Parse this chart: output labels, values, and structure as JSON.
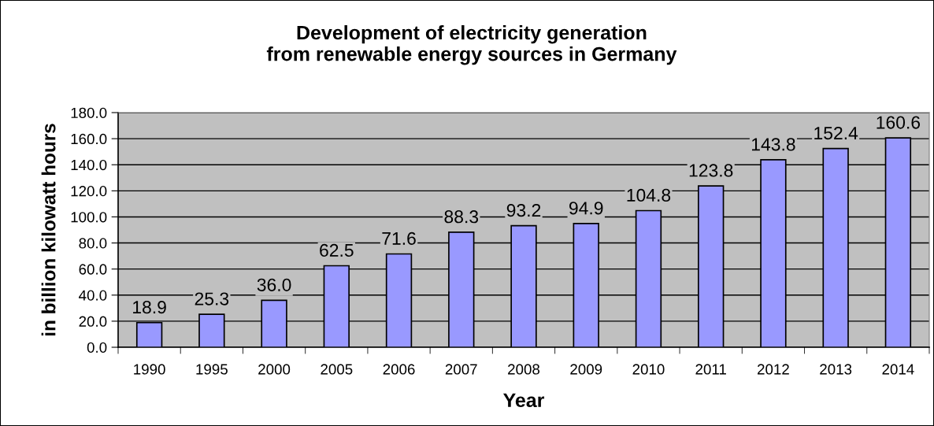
{
  "chart_data": {
    "type": "bar",
    "title": "Development of electricity generation\nfrom renewable energy sources in Germany",
    "xlabel": "Year",
    "ylabel": "in billion kilowatt hours",
    "categories": [
      "1990",
      "1995",
      "2000",
      "2005",
      "2006",
      "2007",
      "2008",
      "2009",
      "2010",
      "2011",
      "2012",
      "2013",
      "2014"
    ],
    "values": [
      18.9,
      25.3,
      36.0,
      62.5,
      71.6,
      88.3,
      93.2,
      94.9,
      104.8,
      123.8,
      143.8,
      152.4,
      160.6
    ],
    "value_labels": [
      "18.9",
      "25.3",
      "36.0",
      "62.5",
      "71.6",
      "88.3",
      "93.2",
      "94.9",
      "104.8",
      "123.8",
      "143.8",
      "152.4",
      "160.6"
    ],
    "color": "#9999ff",
    "ylim": [
      0,
      180
    ],
    "yticks": [
      {
        "value": 0,
        "label": "0.0"
      },
      {
        "value": 20,
        "label": "20.0"
      },
      {
        "value": 40,
        "label": "40.0"
      },
      {
        "value": 60,
        "label": "60.0"
      },
      {
        "value": 80,
        "label": "80.0"
      },
      {
        "value": 100,
        "label": "100.0"
      },
      {
        "value": 120,
        "label": "120.0"
      },
      {
        "value": 140,
        "label": "140.0"
      },
      {
        "value": 160,
        "label": "160.0"
      },
      {
        "value": 180,
        "label": "180.0"
      }
    ],
    "grid": "y"
  }
}
